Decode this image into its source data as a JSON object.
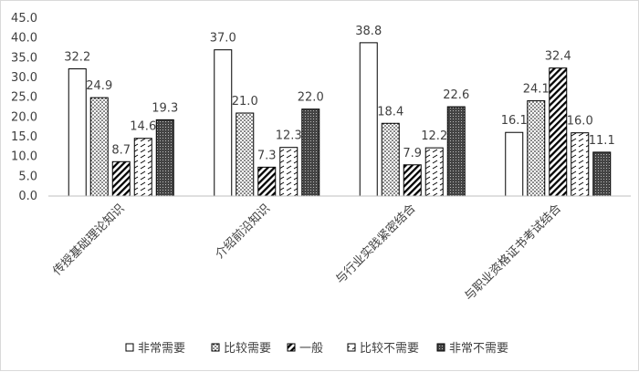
{
  "chart_data": {
    "type": "bar",
    "categories": [
      "传授基础理论知识",
      "介绍前沿知识",
      "与行业实践紧密结合",
      "与职业资格证书考试结合"
    ],
    "series": [
      {
        "name": "非常需要",
        "values": [
          32.2,
          37.0,
          38.8,
          16.1
        ],
        "pattern": "white"
      },
      {
        "name": "比较需要",
        "values": [
          24.9,
          21.0,
          18.4,
          24.1
        ],
        "pattern": "dots"
      },
      {
        "name": "一般",
        "values": [
          8.7,
          7.3,
          7.9,
          32.4
        ],
        "pattern": "diag"
      },
      {
        "name": "比较不需要",
        "values": [
          14.6,
          12.3,
          12.2,
          16.0
        ],
        "pattern": "dash"
      },
      {
        "name": "非常不需要",
        "values": [
          19.3,
          22.0,
          22.6,
          11.1
        ],
        "pattern": "dark"
      }
    ],
    "data_labels": [
      [
        "32.2",
        "24.9",
        "8.7",
        "14.6",
        "19.3"
      ],
      [
        "37.0",
        "21.0",
        "7.3",
        "12.3",
        "22.0"
      ],
      [
        "38.8",
        "18.4",
        "7.9",
        "12.2",
        "22.6"
      ],
      [
        "16.1",
        "24.1",
        "32.4",
        "16.0",
        "11.1"
      ]
    ],
    "y_ticks": [
      "0.0",
      "5.0",
      "10.0",
      "15.0",
      "20.0",
      "25.0",
      "30.0",
      "35.0",
      "40.0",
      "45.0"
    ],
    "ylim": [
      0,
      45
    ],
    "y_step": 5,
    "grid": false,
    "legend_position": "bottom",
    "title": "",
    "xlabel": "",
    "ylabel": ""
  }
}
